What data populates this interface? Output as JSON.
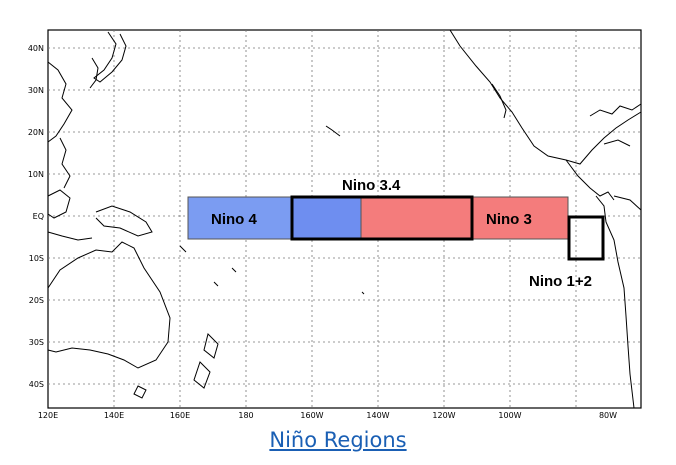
{
  "map": {
    "lat_labels": [
      "40N",
      "30N",
      "20N",
      "10N",
      "EQ",
      "10S",
      "20S",
      "30S",
      "40S"
    ],
    "lon_labels": [
      "120E",
      "140E",
      "160E",
      "180",
      "160W",
      "140W",
      "120W",
      "100W",
      "80W"
    ],
    "regions": {
      "nino4": {
        "label": "Nino 4",
        "color": "#7b9cf2"
      },
      "nino34": {
        "label": "Nino 3.4"
      },
      "nino3": {
        "label": "Nino 3",
        "color": "#f47c7c"
      },
      "nino12": {
        "label": "Nino 1+2"
      }
    },
    "overlap_color": "#6e8ef0"
  },
  "caption": {
    "link_text": "Niño Regions"
  }
}
